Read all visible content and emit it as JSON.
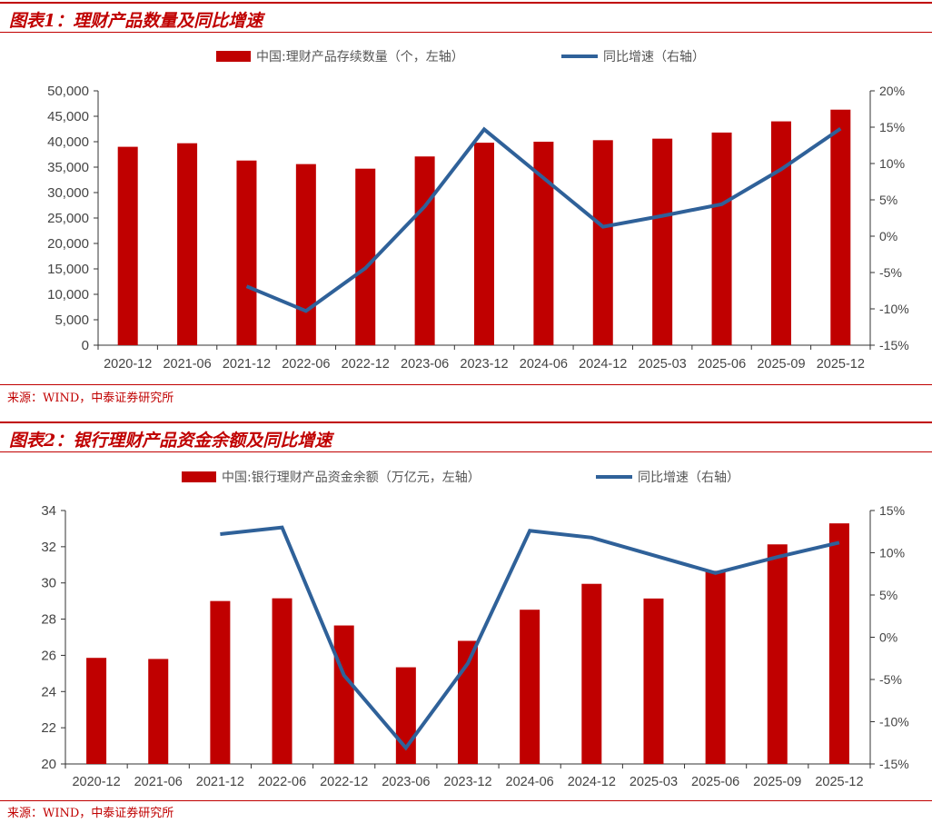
{
  "figures": [
    {
      "title": "图表1：理财产品数量及同比增速",
      "source": "来源：WIND，中泰证券研究所"
    },
    {
      "title": "图表2：银行理财产品资金余额及同比增速",
      "source": "来源：WIND，中泰证券研究所"
    }
  ],
  "colors": {
    "bar": "#c00000",
    "line": "#2f6199",
    "accent": "#c00000"
  },
  "chart_data": [
    {
      "type": "bar",
      "categories": [
        "2020-12",
        "2021-06",
        "2021-12",
        "2022-06",
        "2022-12",
        "2023-06",
        "2023-12",
        "2024-06",
        "2024-12",
        "2025-03",
        "2025-06",
        "2025-09",
        "2025-12"
      ],
      "series": [
        {
          "name": "中国:理财产品存续数量（个，左轴）",
          "type": "bar",
          "axis": "left",
          "values": [
            39000,
            39700,
            36300,
            35600,
            34700,
            37100,
            39800,
            40000,
            40300,
            40600,
            41800,
            44000,
            46300
          ]
        },
        {
          "name": "同比增速（右轴）",
          "type": "line",
          "axis": "right",
          "values": [
            null,
            null,
            -6.9,
            -10.3,
            -4.4,
            4.1,
            14.7,
            8.0,
            1.3,
            2.8,
            4.4,
            9.2,
            14.8
          ]
        }
      ],
      "y_left": {
        "min": 0,
        "max": 50000,
        "ticks": [
          "0",
          "5,000",
          "10,000",
          "15,000",
          "20,000",
          "25,000",
          "30,000",
          "35,000",
          "40,000",
          "45,000",
          "50,000"
        ]
      },
      "y_right": {
        "min": -15,
        "max": 20,
        "ticks": [
          "-15%",
          "-10%",
          "-5%",
          "0%",
          "5%",
          "10%",
          "15%",
          "20%"
        ]
      },
      "legend": "top-center",
      "grid": false
    },
    {
      "type": "bar",
      "categories": [
        "2020-12",
        "2021-06",
        "2021-12",
        "2022-06",
        "2022-12",
        "2023-06",
        "2023-12",
        "2024-06",
        "2024-12",
        "2025-03",
        "2025-06",
        "2025-09",
        "2025-12"
      ],
      "series": [
        {
          "name": "中国:银行理财产品资金余额（万亿元，左轴）",
          "type": "bar",
          "axis": "left",
          "values": [
            25.86,
            25.8,
            29.0,
            29.15,
            27.65,
            25.34,
            26.8,
            28.52,
            29.95,
            29.14,
            30.67,
            32.13,
            33.29
          ]
        },
        {
          "name": "同比增速（右轴）",
          "type": "line",
          "axis": "right",
          "values": [
            null,
            null,
            12.2,
            13.0,
            -4.5,
            -13.1,
            -3.1,
            12.6,
            11.8,
            null,
            7.6,
            9.5,
            11.2
          ]
        }
      ],
      "y_left": {
        "min": 20,
        "max": 34,
        "ticks": [
          "20",
          "22",
          "24",
          "26",
          "28",
          "30",
          "32",
          "34"
        ]
      },
      "y_right": {
        "min": -15,
        "max": 15,
        "ticks": [
          "-15%",
          "-10%",
          "-5%",
          "0%",
          "5%",
          "10%",
          "15%"
        ]
      },
      "legend": "top-center",
      "grid": false
    }
  ]
}
